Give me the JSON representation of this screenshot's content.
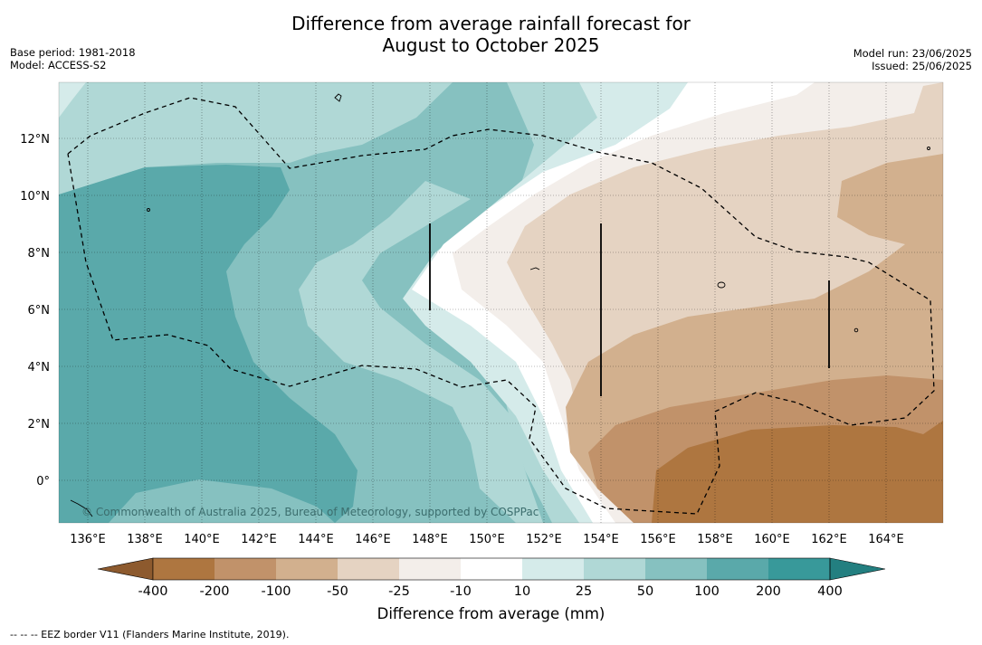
{
  "title_line1": "Difference from average rainfall forecast for",
  "title_line2": "August to October 2025",
  "meta": {
    "base_period": "Base period: 1981-2018",
    "model": "Model: ACCESS-S2",
    "model_run": "Model run: 23/06/2025",
    "issued": "Issued: 25/06/2025"
  },
  "copyright": "© Commonwealth of Australia 2025, Bureau of Meteorology, supported by COSPPac",
  "lon_ticks": [
    "136°E",
    "138°E",
    "140°E",
    "142°E",
    "144°E",
    "146°E",
    "148°E",
    "150°E",
    "152°E",
    "154°E",
    "156°E",
    "158°E",
    "160°E",
    "162°E",
    "164°E"
  ],
  "lat_ticks": [
    "12°N",
    "10°N",
    "8°N",
    "6°N",
    "4°N",
    "2°N",
    "0°"
  ],
  "colorbar": {
    "title": "Difference from average (mm)",
    "labels": [
      "-400",
      "-200",
      "-100",
      "-50",
      "-25",
      "-10",
      "10",
      "25",
      "50",
      "100",
      "200",
      "400"
    ],
    "colors": [
      "#8d5a2e",
      "#ae7640",
      "#c1926a",
      "#d2b08e",
      "#e5d3c2",
      "#f3eeea",
      "#ffffff",
      "#d5ebea",
      "#b0d8d6",
      "#86c1c0",
      "#5aa9aa",
      "#38999a",
      "#237f80"
    ]
  },
  "footnote": "--  --  -- EEZ border V11 (Flanders Marine Institute, 2019)."
}
